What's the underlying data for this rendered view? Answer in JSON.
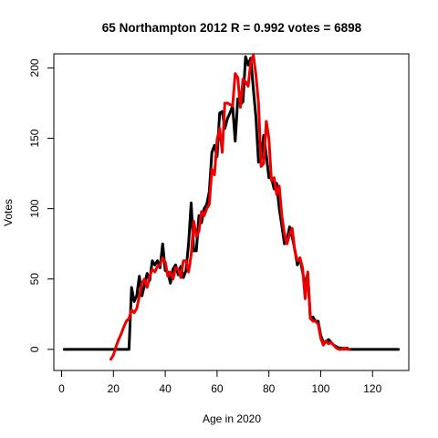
{
  "chart_data": {
    "type": "line",
    "title": "65 Northampton 2012 R = 0.992 votes = 6898",
    "xlabel": "Age in 2020",
    "ylabel": "Votes",
    "xlim": [
      -3,
      134
    ],
    "ylim": [
      -15,
      210
    ],
    "xticks": [
      0,
      20,
      40,
      60,
      80,
      100,
      120
    ],
    "yticks": [
      0,
      50,
      100,
      150,
      200
    ],
    "grid": false,
    "legend": "none",
    "series": [
      {
        "color": "#000000",
        "x": [
          1,
          2,
          3,
          4,
          5,
          6,
          7,
          8,
          9,
          10,
          11,
          12,
          13,
          14,
          15,
          16,
          17,
          18,
          19,
          20,
          21,
          22,
          23,
          24,
          25,
          26,
          27,
          28,
          29,
          30,
          31,
          32,
          33,
          34,
          35,
          36,
          37,
          38,
          39,
          40,
          41,
          42,
          43,
          44,
          45,
          46,
          47,
          48,
          49,
          50,
          51,
          52,
          53,
          54,
          55,
          56,
          57,
          58,
          59,
          60,
          61,
          62,
          63,
          64,
          65,
          66,
          67,
          68,
          69,
          70,
          71,
          72,
          73,
          74,
          75,
          76,
          77,
          78,
          79,
          80,
          81,
          82,
          83,
          84,
          85,
          86,
          87,
          88,
          89,
          90,
          91,
          92,
          93,
          94,
          95,
          96,
          97,
          98,
          99,
          100,
          101,
          102,
          103,
          104,
          105,
          106,
          107,
          108,
          109,
          110,
          111,
          112,
          113,
          114,
          115,
          116,
          117,
          118,
          119,
          120,
          121,
          122,
          123,
          124,
          125,
          126,
          127,
          128,
          129,
          130
        ],
        "y": [
          0,
          0,
          0,
          0,
          0,
          0,
          0,
          0,
          0,
          0,
          0,
          0,
          0,
          0,
          0,
          0,
          0,
          0,
          0,
          0,
          0,
          0,
          0,
          0,
          0,
          0,
          44,
          34,
          38,
          52,
          38,
          46,
          54,
          49,
          63,
          60,
          63,
          58,
          75,
          56,
          55,
          47,
          57,
          60,
          53,
          59,
          51,
          56,
          75,
          104,
          70,
          70,
          95,
          90,
          100,
          103,
          112,
          140,
          145,
          137,
          168,
          169,
          157,
          164,
          168,
          173,
          148,
          178,
          174,
          176,
          208,
          202,
          207,
          185,
          165,
          133,
          135,
          152,
          138,
          122,
          122,
          114,
          118,
          100,
          88,
          75,
          78,
          87,
          80,
          71,
          60,
          65,
          55,
          46,
          54,
          22,
          23,
          20,
          20,
          10,
          5,
          5,
          7,
          5,
          3,
          2,
          1,
          1,
          0,
          1,
          0,
          0,
          0,
          0,
          0,
          0,
          0,
          0,
          0,
          0,
          0,
          0,
          0,
          0,
          0,
          0,
          0,
          0,
          0,
          0
        ]
      },
      {
        "color": "#ee0000",
        "x": [
          19,
          20,
          21,
          22,
          23,
          24,
          25,
          26,
          27,
          28,
          29,
          30,
          31,
          32,
          33,
          34,
          35,
          36,
          37,
          38,
          39,
          40,
          41,
          42,
          43,
          44,
          45,
          46,
          47,
          48,
          49,
          50,
          51,
          52,
          53,
          54,
          55,
          56,
          57,
          58,
          59,
          60,
          61,
          62,
          63,
          64,
          65,
          66,
          67,
          68,
          69,
          70,
          71,
          72,
          73,
          74,
          75,
          76,
          77,
          78,
          79,
          80,
          81,
          82,
          83,
          84,
          85,
          86,
          87,
          88,
          89,
          90,
          91,
          92,
          93,
          94,
          95,
          96,
          97,
          98,
          99,
          100,
          101,
          102,
          103,
          104,
          105,
          106,
          107,
          108,
          109,
          110,
          111
        ],
        "y": [
          -7,
          -4,
          2,
          7,
          11,
          16,
          20,
          22,
          28,
          26,
          29,
          38,
          47,
          50,
          44,
          52,
          57,
          55,
          59,
          60,
          65,
          62,
          52,
          55,
          50,
          58,
          57,
          51,
          63,
          63,
          55,
          67,
          91,
          80,
          84,
          98,
          95,
          100,
          103,
          128,
          124,
          149,
          157,
          140,
          175,
          175,
          174,
          173,
          196,
          193,
          172,
          192,
          190,
          187,
          204,
          209,
          195,
          175,
          130,
          132,
          162,
          150,
          120,
          122,
          110,
          116,
          95,
          82,
          75,
          82,
          86,
          70,
          63,
          65,
          58,
          36,
          55,
          22,
          20,
          20,
          18,
          8,
          3,
          6,
          4,
          5,
          3,
          1,
          0,
          0,
          1,
          0,
          0
        ]
      }
    ]
  }
}
